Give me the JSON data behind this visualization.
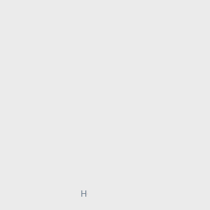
{
  "background_color": "#ebebeb",
  "atom_colors": {
    "N": "#0000ee",
    "O": "#ee0000",
    "H": "#708090"
  },
  "bond_color": "#000000",
  "bond_width": 1.4,
  "fig_size": [
    3.0,
    3.0
  ],
  "dpi": 100
}
